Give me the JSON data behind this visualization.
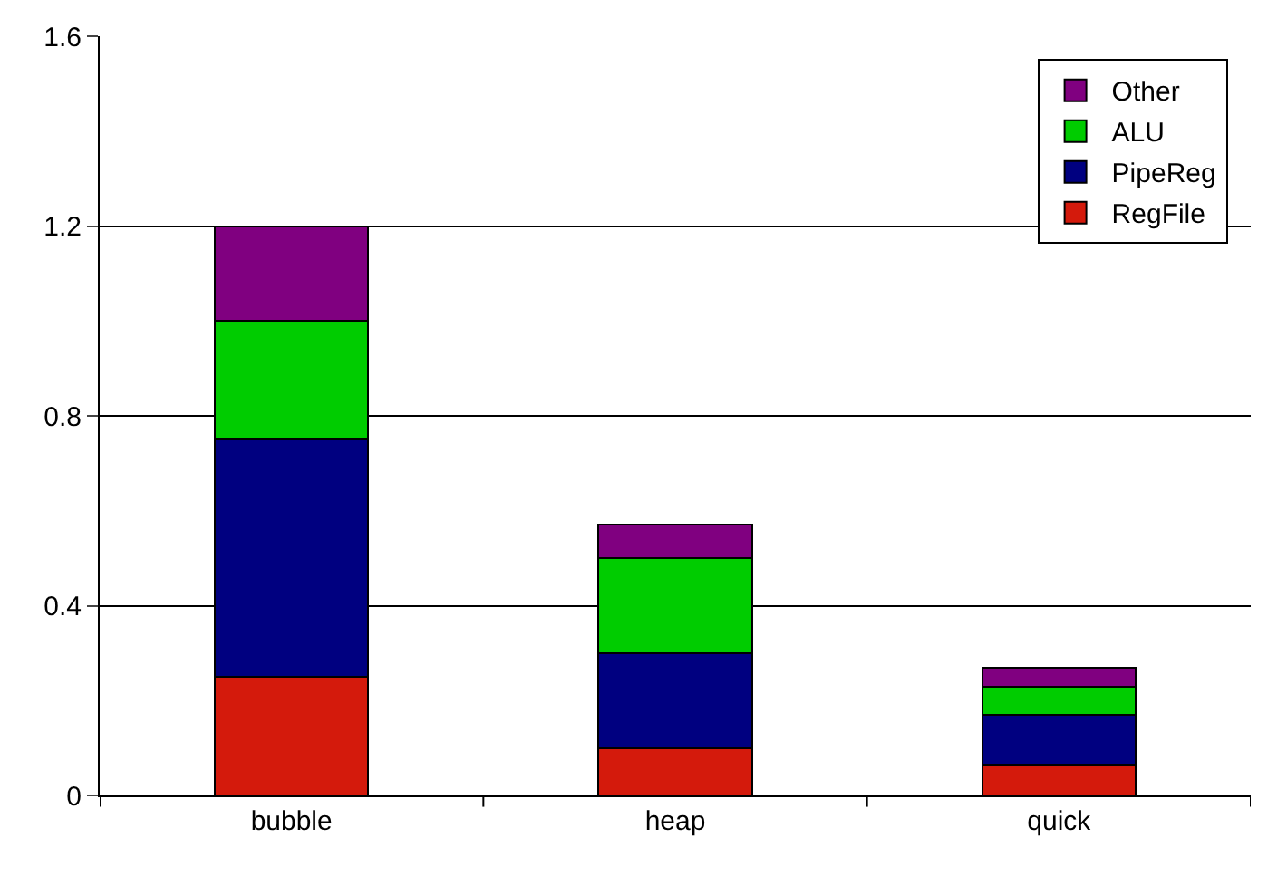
{
  "chart_data": {
    "type": "bar",
    "stacked": true,
    "categories": [
      "bubble",
      "heap",
      "quick"
    ],
    "series": [
      {
        "name": "RegFile",
        "color": "#d41a0c",
        "values": [
          0.25,
          0.1,
          0.065
        ]
      },
      {
        "name": "PipeReg",
        "color": "#000080",
        "values": [
          0.5,
          0.2,
          0.105
        ]
      },
      {
        "name": "ALU",
        "color": "#00cc00",
        "values": [
          0.25,
          0.2,
          0.06
        ]
      },
      {
        "name": "Other",
        "color": "#800080",
        "values": [
          0.2,
          0.07,
          0.04
        ]
      }
    ],
    "ylim": [
      0,
      1.6
    ],
    "yticks": [
      {
        "value": 0,
        "label": "0"
      },
      0.4,
      0.8,
      1.2,
      1.6
    ],
    "grid": "y",
    "legend": "top right"
  }
}
